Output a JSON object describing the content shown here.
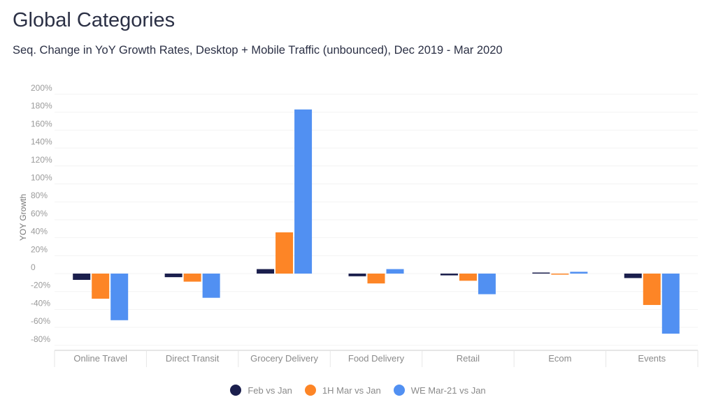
{
  "header": {
    "title": "Global Categories",
    "subtitle": "Seq. Change in YoY Growth Rates, Desktop + Mobile Traffic (unbounced), Dec 2019 - Mar 2020"
  },
  "chart_data": {
    "type": "bar",
    "title": "Global Categories",
    "subtitle": "Seq. Change in YoY Growth Rates, Desktop + Mobile Traffic (unbounced), Dec 2019 - Mar 2020",
    "xlabel": "",
    "ylabel": "YOY Growth",
    "ylim": [
      -80,
      200
    ],
    "yticks": [
      "200%",
      "180%",
      "160%",
      "140%",
      "120%",
      "100%",
      "80%",
      "60%",
      "40%",
      "20%",
      "0",
      "-20%",
      "-40%",
      "-60%",
      "-80%"
    ],
    "ytick_values": [
      200,
      180,
      160,
      140,
      120,
      100,
      80,
      60,
      40,
      20,
      0,
      -20,
      -40,
      -60,
      -80
    ],
    "categories": [
      "Online Travel",
      "Direct Transit",
      "Grocery Delivery",
      "Food Delivery",
      "Retail",
      "Ecom",
      "Events"
    ],
    "series": [
      {
        "name": "Feb vs Jan",
        "color": "#1b1f4d",
        "values": [
          -7,
          -4,
          5,
          -3,
          -2,
          0,
          -5
        ]
      },
      {
        "name": "1H Mar vs Jan",
        "color": "#fd8526",
        "values": [
          -28,
          -9,
          46,
          -11,
          -8,
          -1,
          -35
        ]
      },
      {
        "name": "WE Mar-21 vs Jan",
        "color": "#5190f2",
        "values": [
          -52,
          -27,
          183,
          5,
          -23,
          2,
          -67
        ]
      }
    ],
    "grid": true,
    "legend": "bottom-center"
  }
}
